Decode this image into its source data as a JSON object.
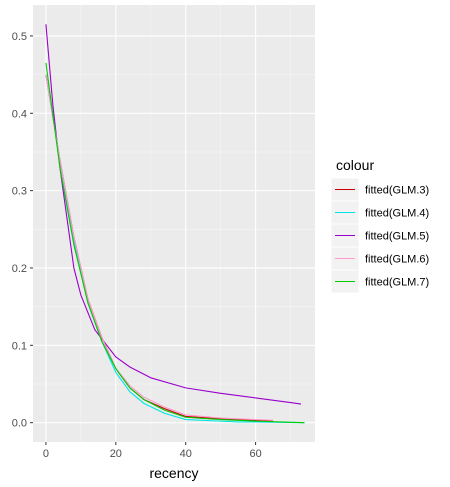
{
  "chart_data": {
    "type": "line",
    "xlabel": "recency",
    "ylabel": "",
    "xlim": [
      -3.7,
      77
    ],
    "ylim": [
      -0.025,
      0.54
    ],
    "x_ticks": [
      0,
      20,
      40,
      60
    ],
    "y_ticks": [
      0.0,
      0.1,
      0.2,
      0.3,
      0.4,
      0.5
    ],
    "x_tick_labels": [
      "0",
      "20",
      "40",
      "60"
    ],
    "y_tick_labels": [
      "0.0",
      "0.1",
      "0.2",
      "0.3",
      "0.4",
      "0.5"
    ],
    "grid": true,
    "legend": {
      "title": "colour",
      "position": "right"
    },
    "series": [
      {
        "name": "fitted(GLM.3)",
        "color": "#cc0000",
        "points": [
          [
            0,
            0.45
          ],
          [
            4,
            0.34
          ],
          [
            8,
            0.24
          ],
          [
            12,
            0.16
          ],
          [
            16,
            0.11
          ],
          [
            20,
            0.07
          ],
          [
            24,
            0.045
          ],
          [
            28,
            0.03
          ],
          [
            34,
            0.018
          ],
          [
            40,
            0.008
          ],
          [
            50,
            0.005
          ],
          [
            60,
            0.003
          ],
          [
            65,
            0.002
          ]
        ]
      },
      {
        "name": "fitted(GLM.4)",
        "color": "#00e5e5",
        "points": [
          [
            0,
            0.45
          ],
          [
            4,
            0.34
          ],
          [
            8,
            0.235
          ],
          [
            12,
            0.155
          ],
          [
            16,
            0.105
          ],
          [
            20,
            0.065
          ],
          [
            24,
            0.04
          ],
          [
            28,
            0.025
          ],
          [
            34,
            0.012
          ],
          [
            40,
            0.004
          ],
          [
            50,
            0.002
          ],
          [
            55,
            0.001
          ],
          [
            60,
            0.001
          ],
          [
            74,
            0.0
          ]
        ]
      },
      {
        "name": "fitted(GLM.5)",
        "color": "#9900cc",
        "points": [
          [
            0,
            0.515
          ],
          [
            2,
            0.41
          ],
          [
            4,
            0.33
          ],
          [
            8,
            0.2
          ],
          [
            10,
            0.165
          ],
          [
            14,
            0.12
          ],
          [
            20,
            0.085
          ],
          [
            24,
            0.072
          ],
          [
            30,
            0.058
          ],
          [
            40,
            0.045
          ],
          [
            50,
            0.038
          ],
          [
            60,
            0.032
          ],
          [
            70,
            0.026
          ],
          [
            73,
            0.024
          ]
        ]
      },
      {
        "name": "fitted(GLM.6)",
        "color": "#ff99cc",
        "points": [
          [
            0,
            0.45
          ],
          [
            4,
            0.34
          ],
          [
            8,
            0.24
          ],
          [
            12,
            0.16
          ],
          [
            16,
            0.11
          ],
          [
            20,
            0.07
          ],
          [
            24,
            0.048
          ],
          [
            28,
            0.033
          ],
          [
            34,
            0.02
          ],
          [
            40,
            0.01
          ],
          [
            50,
            0.006
          ],
          [
            60,
            0.004
          ],
          [
            65,
            0.003
          ]
        ]
      },
      {
        "name": "fitted(GLM.7)",
        "color": "#00cc00",
        "points": [
          [
            0,
            0.465
          ],
          [
            4,
            0.33
          ],
          [
            8,
            0.23
          ],
          [
            12,
            0.155
          ],
          [
            16,
            0.105
          ],
          [
            20,
            0.07
          ],
          [
            24,
            0.045
          ],
          [
            28,
            0.03
          ],
          [
            34,
            0.016
          ],
          [
            40,
            0.007
          ],
          [
            50,
            0.004
          ],
          [
            60,
            0.002
          ],
          [
            74,
            0.0
          ]
        ]
      }
    ]
  }
}
